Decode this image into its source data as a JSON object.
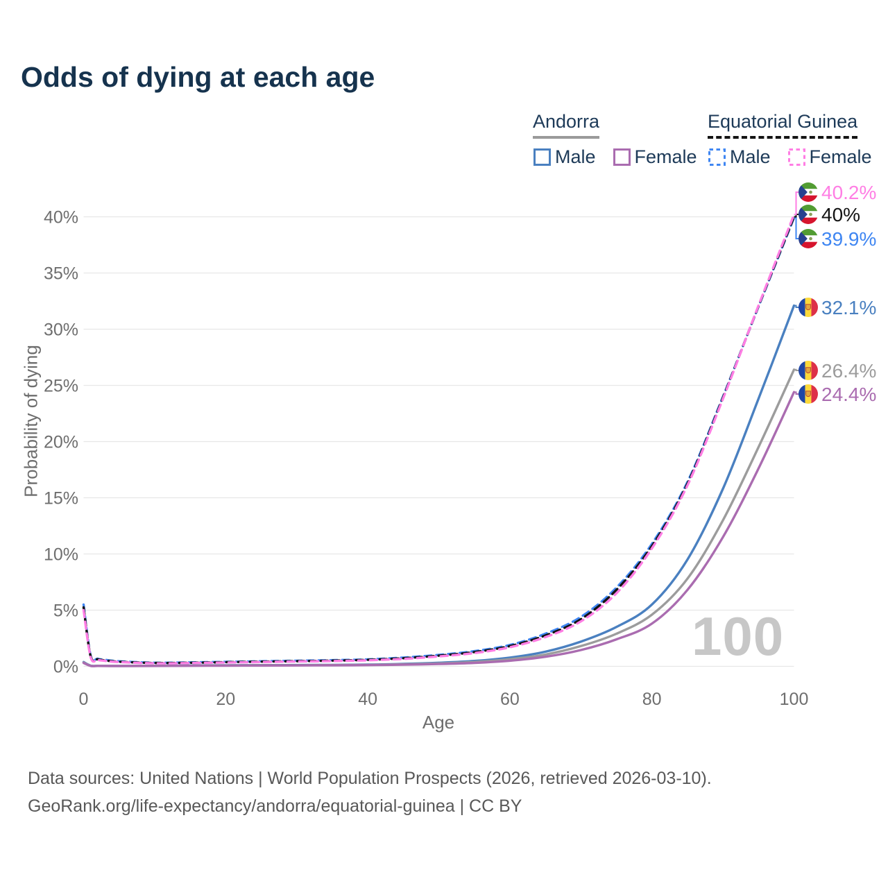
{
  "page": {
    "title": "Odds of dying at each age"
  },
  "legend": {
    "andorra": {
      "label": "Andorra",
      "male_label": "Male",
      "female_label": "Female"
    },
    "equatorial_guinea": {
      "label": "Equatorial Guinea",
      "male_label": "Male",
      "female_label": "Female"
    }
  },
  "colors": {
    "title_text": "#16334e",
    "legend_text": "#1d3a58",
    "axis_text": "#6e6e6e",
    "footer_text": "#585858",
    "gridline": "#e7e7e7",
    "watermark": "#c7c7c7",
    "andorra_underline": "#9a9a9a",
    "eqguinea_underline": "#141414"
  },
  "chart_data": {
    "type": "line",
    "title": "Odds of dying at each age",
    "xlabel": "Age",
    "ylabel": "Probability of dying",
    "xlim": [
      0,
      100
    ],
    "ylim": [
      0,
      42
    ],
    "x_ticks": [
      0,
      20,
      40,
      60,
      80,
      100
    ],
    "y_ticks": [
      0,
      5,
      10,
      15,
      20,
      25,
      30,
      35,
      40
    ],
    "y_tick_suffix": "%",
    "grid": "horizontal",
    "legend_position": "top-right",
    "watermark": "100",
    "ages": [
      0,
      1,
      2,
      3,
      5,
      10,
      15,
      20,
      25,
      30,
      35,
      40,
      45,
      50,
      55,
      60,
      65,
      70,
      75,
      80,
      85,
      90,
      95,
      100
    ],
    "series": [
      {
        "id": "andorra-male",
        "country": "Andorra",
        "sex": "Male",
        "flag": "andorra",
        "color": "#4a80c0",
        "dashed": false,
        "end_label": "32.1%",
        "values": [
          0.38,
          0.06,
          0.05,
          0.045,
          0.04,
          0.05,
          0.08,
          0.1,
          0.11,
          0.12,
          0.13,
          0.16,
          0.22,
          0.32,
          0.48,
          0.78,
          1.3,
          2.2,
          3.5,
          5.5,
          9.5,
          15.8,
          23.8,
          32.1
        ]
      },
      {
        "id": "andorra-both",
        "country": "Andorra",
        "sex": "Both sexes",
        "flag": "andorra",
        "color": "#9c9c9c",
        "dashed": false,
        "end_label": "26.4%",
        "values": [
          0.34,
          0.05,
          0.045,
          0.04,
          0.035,
          0.045,
          0.065,
          0.08,
          0.09,
          0.1,
          0.11,
          0.13,
          0.18,
          0.26,
          0.39,
          0.63,
          1.05,
          1.8,
          2.9,
          4.6,
          7.8,
          13.0,
          19.5,
          26.4
        ]
      },
      {
        "id": "andorra-female",
        "country": "Andorra",
        "sex": "Female",
        "flag": "andorra",
        "color": "#aa6cb0",
        "dashed": false,
        "end_label": "24.4%",
        "values": [
          0.3,
          0.04,
          0.04,
          0.035,
          0.03,
          0.04,
          0.05,
          0.06,
          0.07,
          0.08,
          0.09,
          0.11,
          0.15,
          0.21,
          0.31,
          0.5,
          0.85,
          1.45,
          2.4,
          3.8,
          6.8,
          11.5,
          17.6,
          24.4
        ]
      },
      {
        "id": "eqguinea-male",
        "country": "Equatorial Guinea",
        "sex": "Male",
        "flag": "equatorial-guinea",
        "color": "#3f86f2",
        "dashed": true,
        "end_label": "39.9%",
        "values": [
          5.5,
          0.95,
          0.68,
          0.58,
          0.45,
          0.32,
          0.35,
          0.4,
          0.45,
          0.5,
          0.55,
          0.62,
          0.78,
          1.02,
          1.35,
          1.9,
          2.9,
          4.4,
          7.0,
          10.9,
          16.4,
          24.0,
          32.0,
          39.9
        ]
      },
      {
        "id": "eqguinea-both",
        "country": "Equatorial Guinea",
        "sex": "Both sexes",
        "flag": "equatorial-guinea",
        "color": "#141414",
        "dashed": true,
        "end_label": "40%",
        "values": [
          5.25,
          0.88,
          0.63,
          0.53,
          0.41,
          0.3,
          0.32,
          0.37,
          0.42,
          0.46,
          0.51,
          0.58,
          0.72,
          0.95,
          1.27,
          1.8,
          2.75,
          4.2,
          6.8,
          10.7,
          16.25,
          23.9,
          32.05,
          40.0
        ]
      },
      {
        "id": "eqguinea-female",
        "country": "Equatorial Guinea",
        "sex": "Female",
        "flag": "equatorial-guinea",
        "color": "#ff7ee4",
        "dashed": true,
        "end_label": "40.2%",
        "values": [
          5.0,
          0.81,
          0.58,
          0.49,
          0.38,
          0.27,
          0.29,
          0.34,
          0.38,
          0.43,
          0.47,
          0.54,
          0.66,
          0.88,
          1.18,
          1.7,
          2.6,
          4.0,
          6.5,
          10.5,
          16.1,
          23.8,
          32.1,
          40.2
        ]
      }
    ]
  },
  "footer": {
    "line1": "Data sources: United Nations | World Population Prospects (2026, retrieved 2026-03-10).",
    "line2": "GeoRank.org/life-expectancy/andorra/equatorial-guinea | CC BY"
  }
}
